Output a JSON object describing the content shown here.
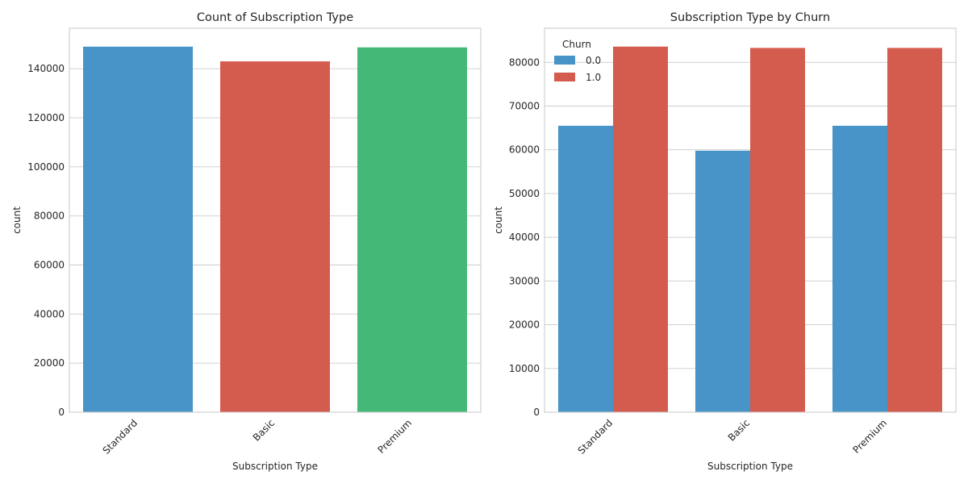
{
  "chart_data": [
    {
      "type": "bar",
      "title": "Count of Subscription Type",
      "xlabel": "Subscription Type",
      "ylabel": "count",
      "categories": [
        "Standard",
        "Basic",
        "Premium"
      ],
      "values": [
        149000,
        143000,
        148700
      ],
      "colors": [
        "#4894c8",
        "#d45c4e",
        "#44b977"
      ],
      "ylim": [
        0,
        156500
      ],
      "yticks": [
        0,
        20000,
        40000,
        60000,
        80000,
        100000,
        120000,
        140000
      ],
      "grid": "horizontal"
    },
    {
      "type": "bar",
      "title": "Subscription Type by Churn",
      "xlabel": "Subscription Type",
      "ylabel": "count",
      "categories": [
        "Standard",
        "Basic",
        "Premium"
      ],
      "legend_title": "Churn",
      "legend_position": "top-left",
      "series": [
        {
          "name": "0.0",
          "values": [
            65500,
            59800,
            65500
          ],
          "color": "#4894c8"
        },
        {
          "name": "1.0",
          "values": [
            83600,
            83300,
            83300
          ],
          "color": "#d45c4e"
        }
      ],
      "ylim": [
        0,
        87800
      ],
      "yticks": [
        0,
        10000,
        20000,
        30000,
        40000,
        50000,
        60000,
        70000,
        80000
      ],
      "grid": "horizontal"
    }
  ]
}
